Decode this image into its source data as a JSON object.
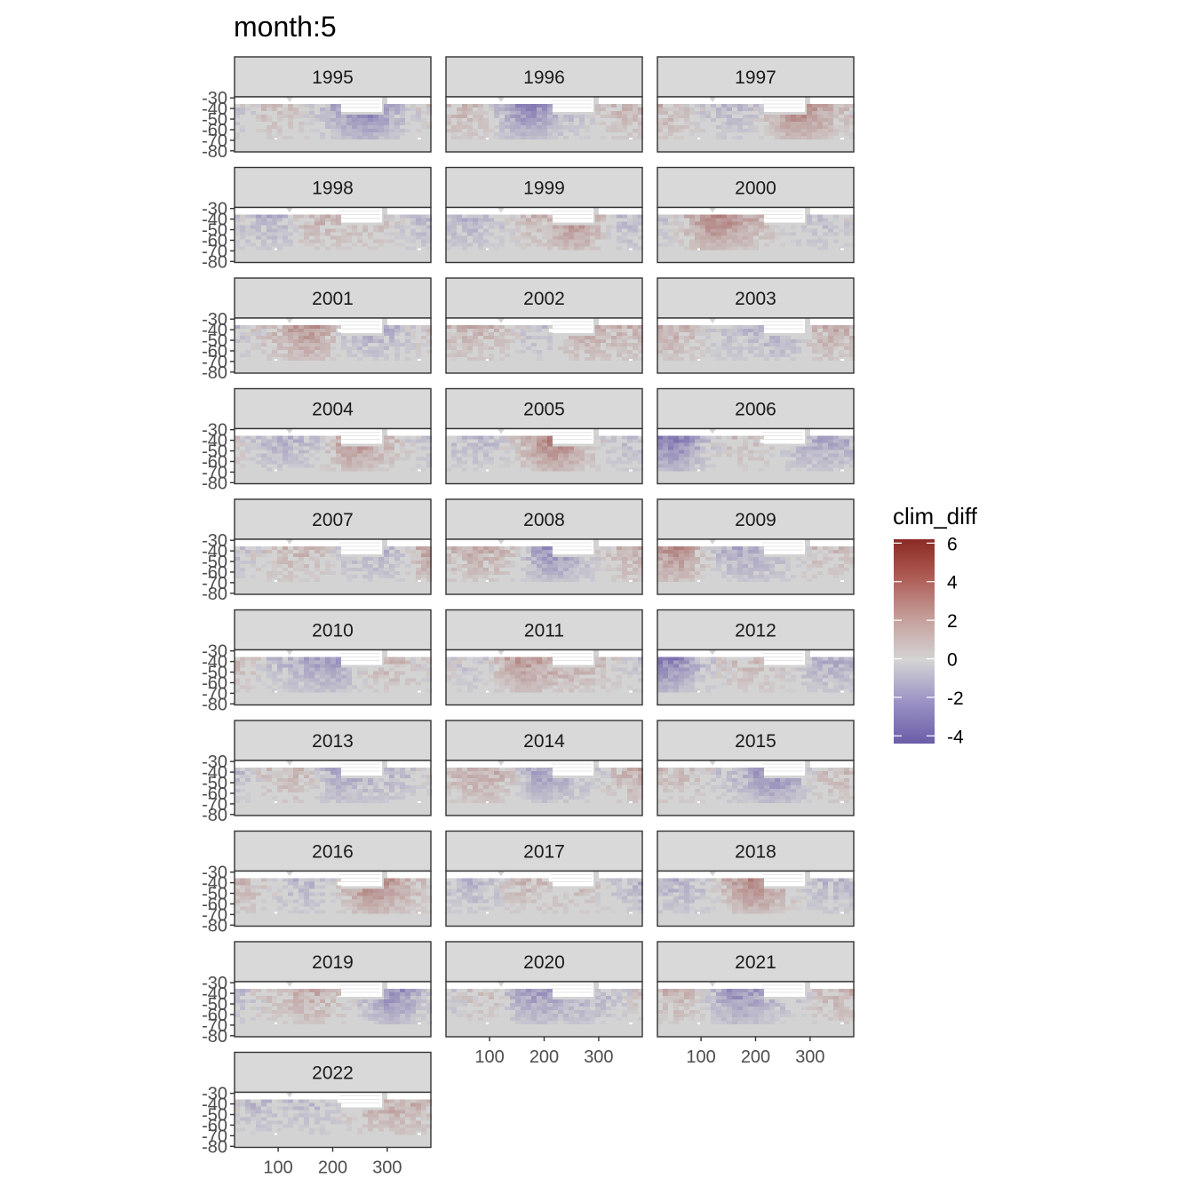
{
  "chart_data": {
    "type": "heatmap",
    "title": "month:5",
    "facet_variable": "year",
    "facets": [
      "1995",
      "1996",
      "1997",
      "1998",
      "1999",
      "2000",
      "2001",
      "2002",
      "2003",
      "2004",
      "2005",
      "2006",
      "2007",
      "2008",
      "2009",
      "2010",
      "2011",
      "2012",
      "2013",
      "2014",
      "2015",
      "2016",
      "2017",
      "2018",
      "2019",
      "2020",
      "2021",
      "2022"
    ],
    "facet_columns": 3,
    "x_ticks": [
      100,
      200,
      300
    ],
    "x_range": [
      20,
      380
    ],
    "y_ticks": [
      -30,
      -40,
      -50,
      -60,
      -70,
      -80
    ],
    "y_range": [
      -81,
      -29
    ],
    "legend": {
      "title": "clim_diff",
      "placement": "right",
      "ticks": [
        6,
        4,
        2,
        0,
        -2,
        -4
      ],
      "range": [
        -4.4,
        6.2
      ],
      "colors": {
        "low": "#6b5da8",
        "mid": "#d4d4d4",
        "high": "#8b2a24"
      }
    },
    "panel_background": "#d4d4d4",
    "strip_background": "#d9d9d9"
  }
}
